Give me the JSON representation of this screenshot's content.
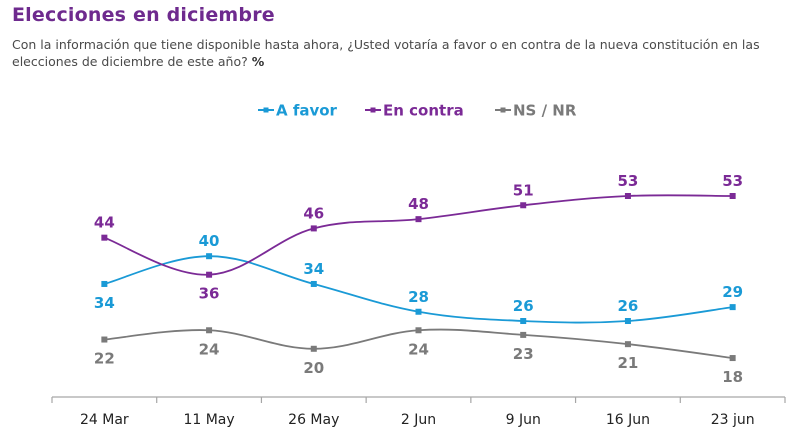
{
  "title": "Elecciones en diciembre",
  "subtitle": "Con la información que tiene disponible hasta ahora, ¿Usted votaría a favor o en contra de la nueva constitución en las elecciones de diciembre de este año?",
  "subtitle_unit": "%",
  "chart_data": {
    "type": "line",
    "title": "Elecciones en diciembre",
    "xlabel": "",
    "ylabel": "%",
    "categories": [
      "24 Mar",
      "11 May",
      "26 May",
      "2 Jun",
      "9 Jun",
      "16 Jun",
      "23 jun"
    ],
    "series": [
      {
        "name": "A favor",
        "color": "#1a9ad6",
        "values": [
          34,
          40,
          34,
          28,
          26,
          26,
          29
        ],
        "label_pos": [
          "below",
          "above",
          "above",
          "above",
          "above",
          "above",
          "above"
        ]
      },
      {
        "name": "En contra",
        "color": "#7b2a96",
        "values": [
          44,
          36,
          46,
          48,
          51,
          53,
          53
        ],
        "label_pos": [
          "above",
          "below",
          "above",
          "above",
          "above",
          "above",
          "above"
        ]
      },
      {
        "name": "NS / NR",
        "color": "#7a7a7a",
        "values": [
          22,
          24,
          20,
          24,
          23,
          21,
          18
        ],
        "label_pos": [
          "below",
          "below",
          "below",
          "below",
          "below",
          "below",
          "below"
        ]
      }
    ],
    "legend": "top-center",
    "grid": false,
    "ylim": [
      15,
      55
    ]
  }
}
